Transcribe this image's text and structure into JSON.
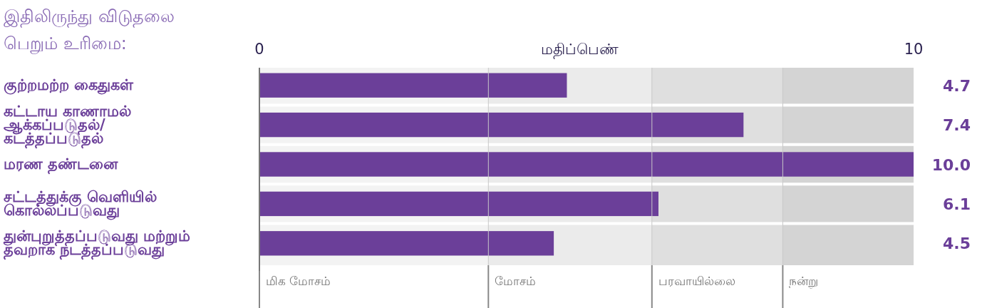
{
  "chart_data": {
    "type": "bar",
    "orientation": "horizontal",
    "title": "இதிலிருந்து விடுதலை பெறும் உரிமை:",
    "xlabel": "மதிப்பெண்",
    "categories": [
      "குற்றமற்ற கைதுகள்",
      "கட்டாய காணாமல் ஆக்கப்படுதல்/ கடத்தப்படுதல்",
      "மரண தண்டனை",
      "சட்டத்துக்கு வெளியில் கொல்லப்படுவது",
      "துன்புறுத்தப்படுவது மற்றும் தவறாக நடத்தப்படுவது"
    ],
    "values": [
      4.7,
      7.4,
      10.0,
      6.1,
      4.5
    ],
    "value_labels": [
      "4.7",
      "7.4",
      "10.0",
      "6.1",
      "4.5"
    ],
    "color": "#6b3f99",
    "xlim": [
      0,
      10
    ],
    "xticks": [
      0,
      10
    ],
    "bands": [
      {
        "axis": "x",
        "from": 0,
        "to": 3.5,
        "label": "மிக மோசம்",
        "color": "#f3f3f3"
      },
      {
        "axis": "x",
        "from": 3.5,
        "to": 6,
        "label": "மோசம்",
        "color": "#ebebeb"
      },
      {
        "axis": "x",
        "from": 6,
        "to": 8,
        "label": "பரவாயில்லை",
        "color": "#dfdfdf"
      },
      {
        "axis": "x",
        "from": 8,
        "to": 10,
        "label": "நன்று",
        "color": "#d4d4d4"
      }
    ],
    "grid": false
  }
}
